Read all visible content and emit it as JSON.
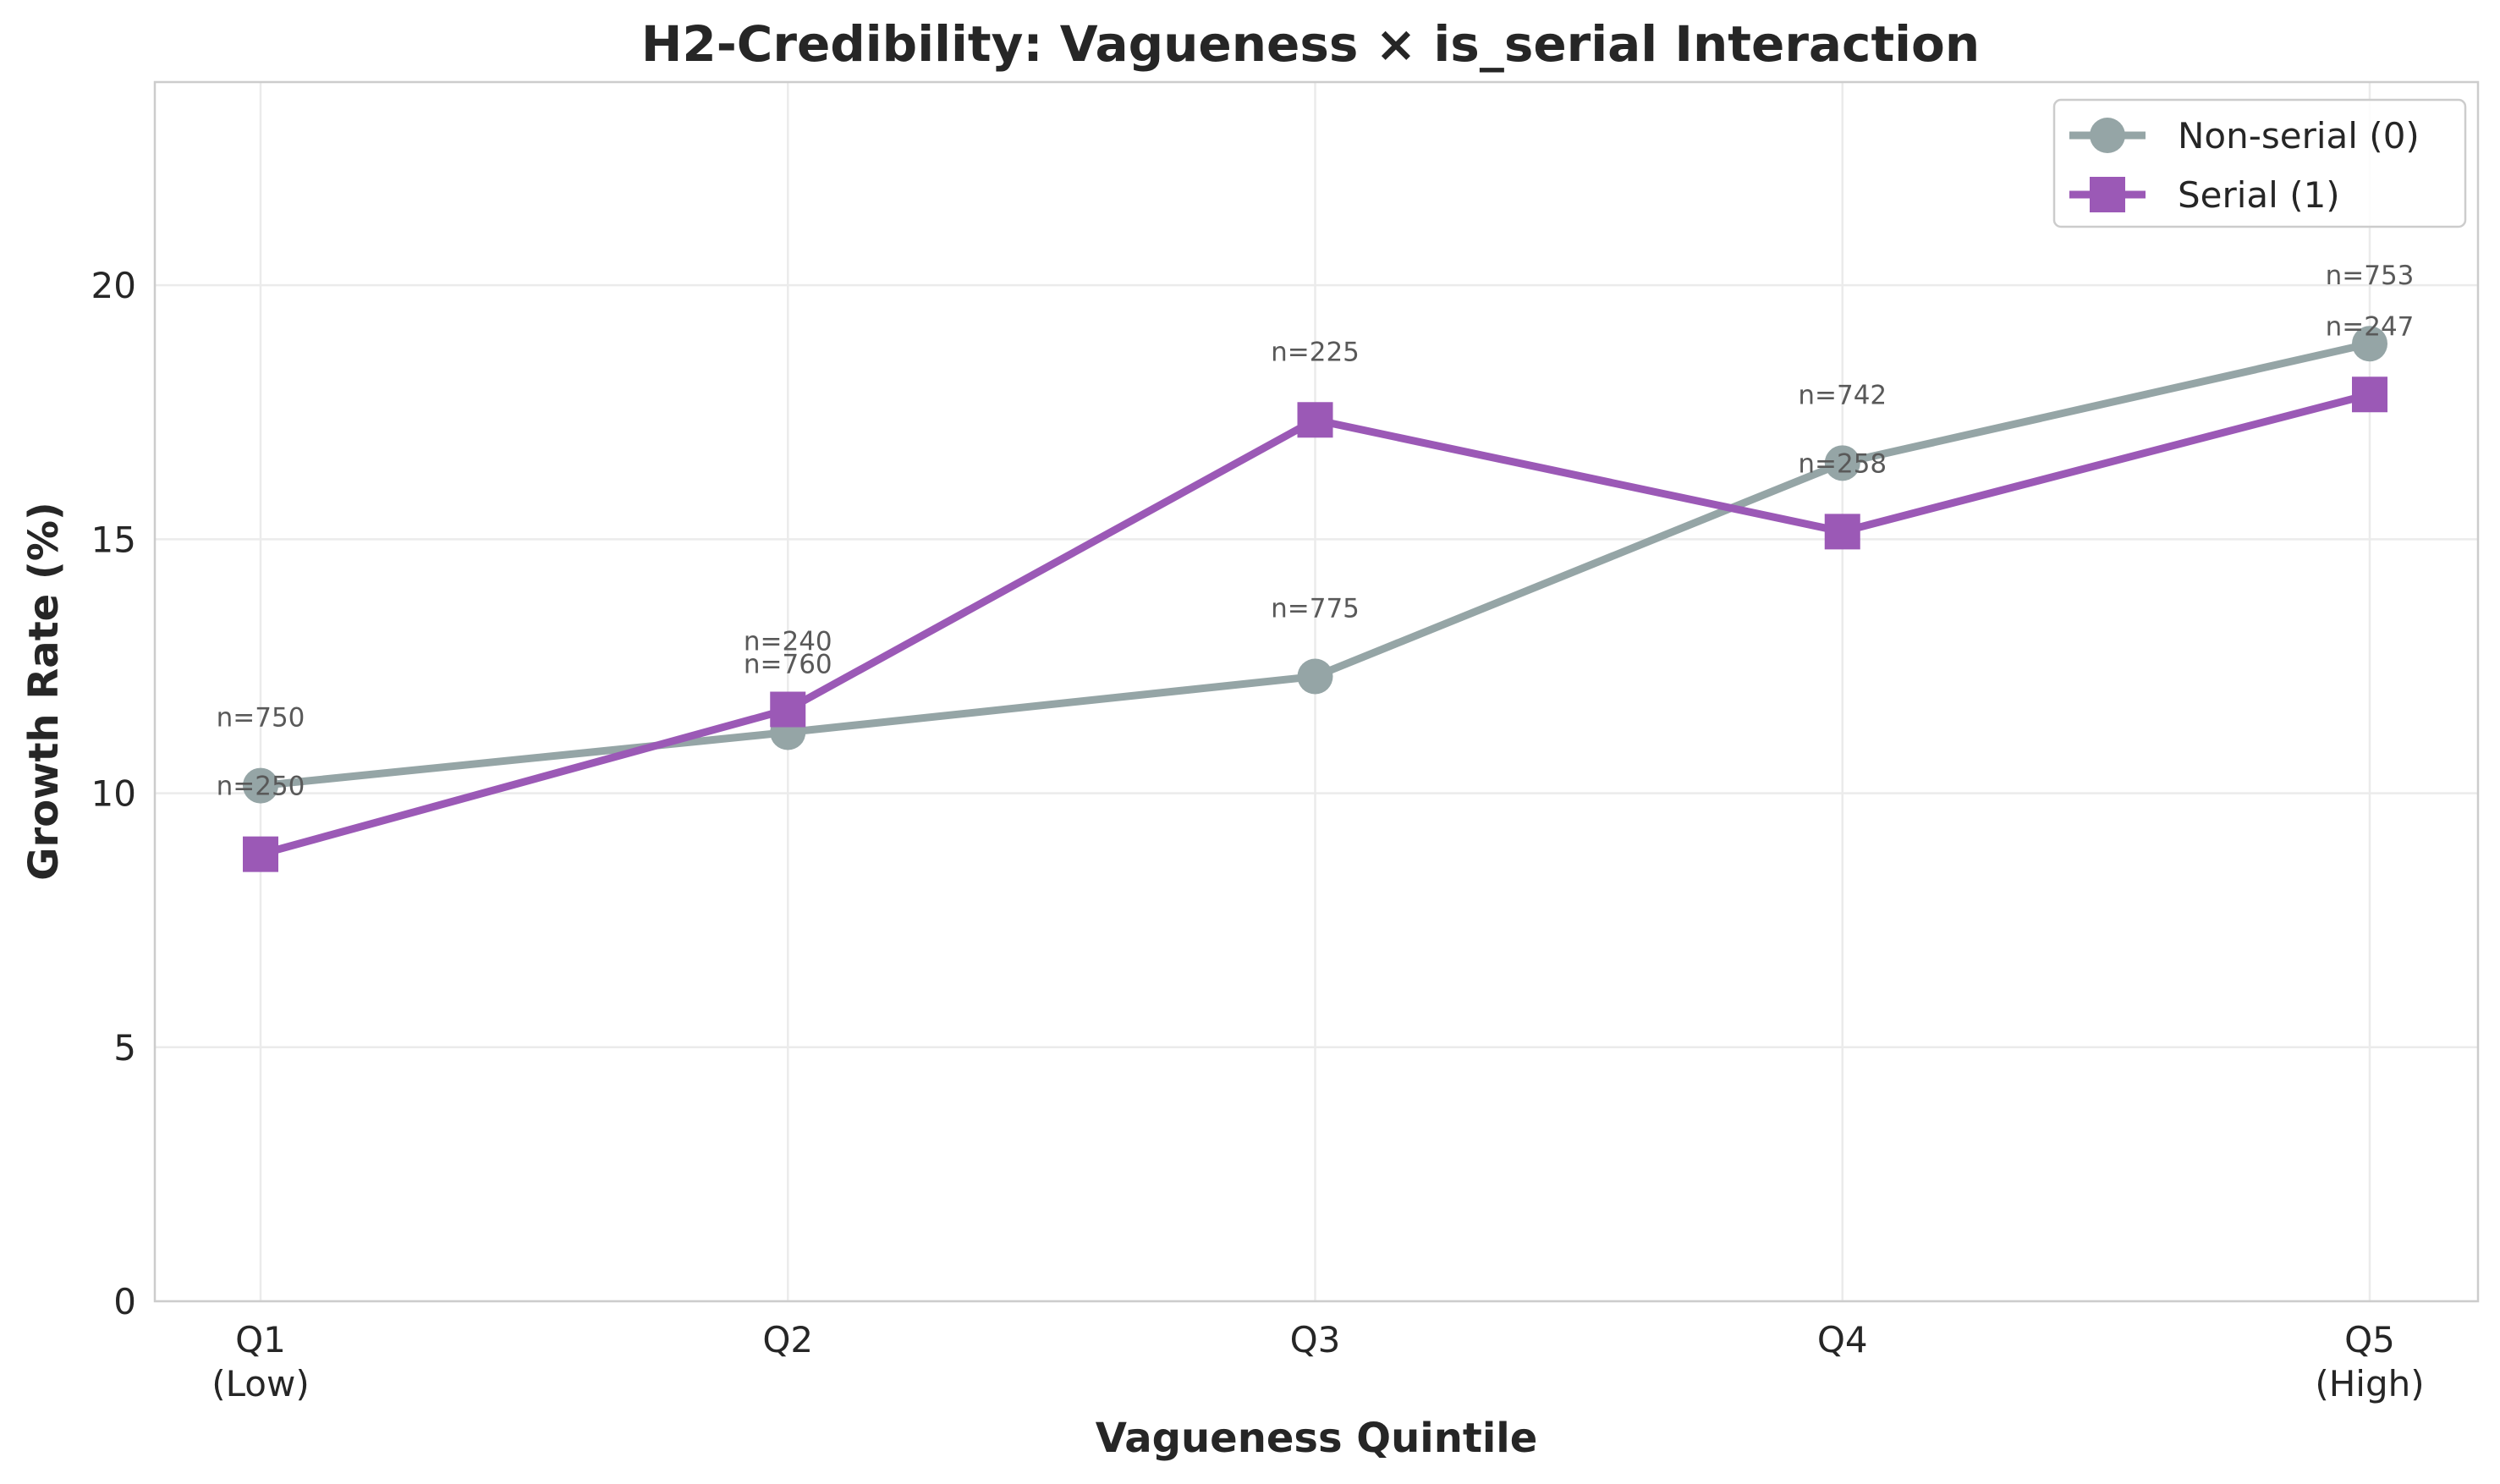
{
  "chart_data": {
    "type": "line",
    "title": "H2-Credibility: Vagueness × is_serial Interaction",
    "xlabel": "Vagueness Quintile",
    "ylabel": "Growth Rate (%)",
    "categories": [
      [
        "Q1",
        "(Low)"
      ],
      [
        "Q2"
      ],
      [
        "Q3"
      ],
      [
        "Q4"
      ],
      [
        "Q5",
        "(High)"
      ]
    ],
    "ylim": [
      0,
      24
    ],
    "yticks": [
      0,
      5,
      10,
      15,
      20
    ],
    "grid": true,
    "legend_position": "top-right",
    "series": [
      {
        "name": "Non-serial (0)",
        "color": "#95a5a6",
        "marker": "circle",
        "values": [
          10.15,
          11.2,
          12.3,
          16.5,
          18.85
        ],
        "n_labels": [
          "n=750",
          "n=760",
          "n=775",
          "n=742",
          "n=753"
        ]
      },
      {
        "name": "Serial (1)",
        "color": "#9b59b6",
        "marker": "square",
        "values": [
          8.8,
          11.65,
          17.35,
          15.15,
          17.85
        ],
        "n_labels": [
          "n=250",
          "n=240",
          "n=225",
          "n=258",
          "n=247"
        ]
      }
    ]
  }
}
